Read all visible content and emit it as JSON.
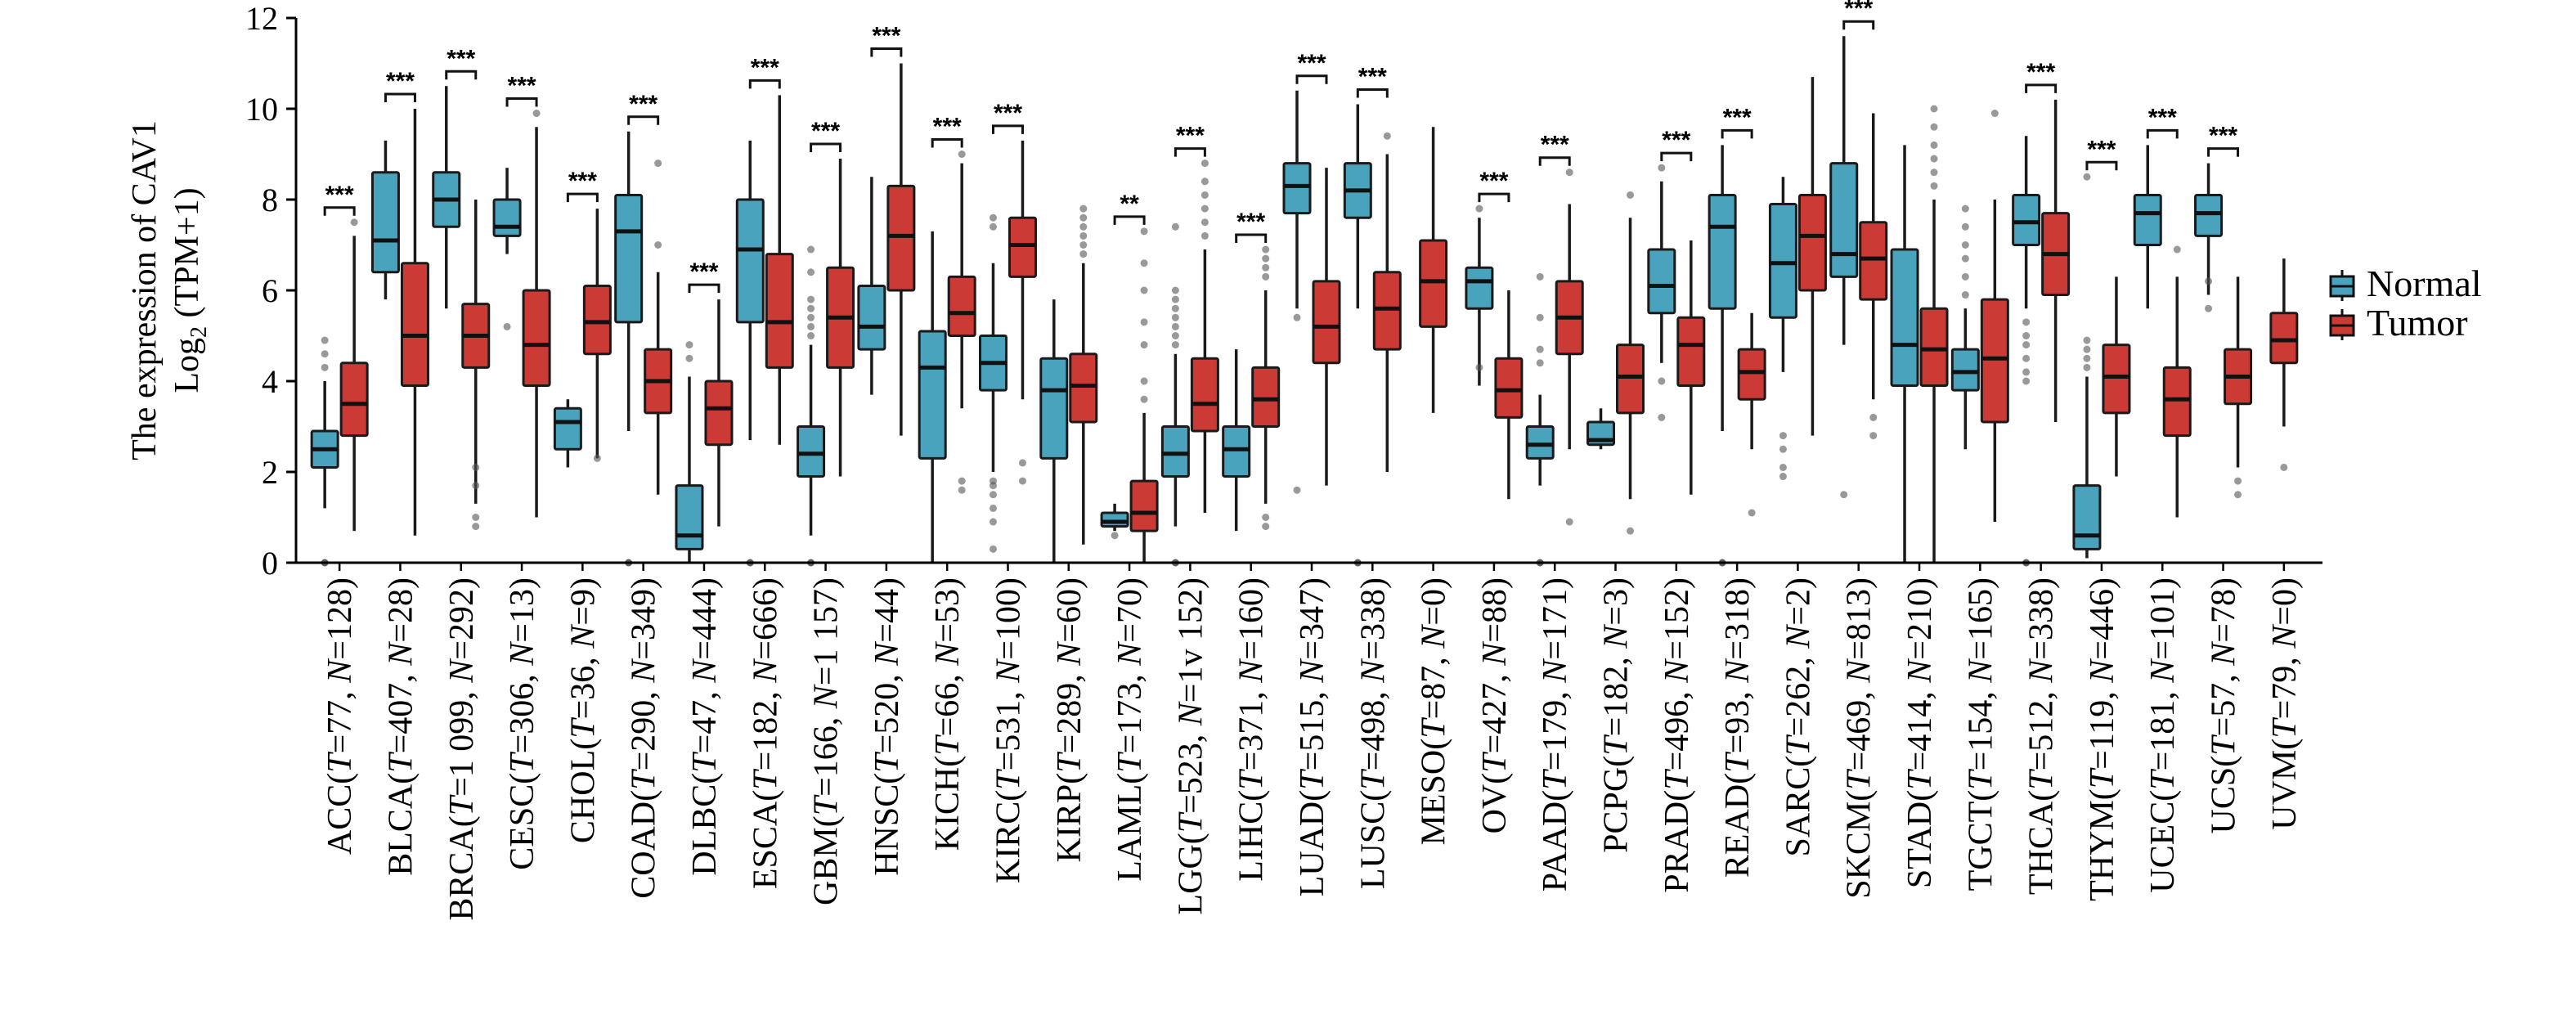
{
  "chart_data": {
    "type": "boxplot",
    "title": "",
    "ylabel_line1": "The expression of CAV1",
    "ylabel_line2": "Log2 (TPM+1)",
    "ylabel_line2_parts": {
      "base": "Log",
      "sub": "2",
      "rest": " (TPM+1)"
    },
    "ylim": [
      0,
      12
    ],
    "yticks": [
      0,
      2,
      4,
      6,
      8,
      10,
      12
    ],
    "legend": [
      {
        "name": "Normal",
        "color": "#4aa3bd"
      },
      {
        "name": "Tumor",
        "color": "#cc3a36"
      }
    ],
    "categories": [
      {
        "label": "ACC(T=77, N=128)",
        "parts": [
          "ACC(",
          "T",
          "=77, ",
          "N",
          "=128)"
        ],
        "sig": "***",
        "normal": {
          "min": 1.2,
          "q1": 2.1,
          "med": 2.5,
          "q3": 2.9,
          "max": 4.0,
          "out": [
            0.0,
            4.3,
            4.6,
            4.9
          ]
        },
        "tumor": {
          "min": 0.7,
          "q1": 2.8,
          "med": 3.5,
          "q3": 4.4,
          "max": 7.2,
          "out": [
            7.5
          ]
        }
      },
      {
        "label": "BLCA(T=407, N=28)",
        "parts": [
          "BLCA(",
          "T",
          "=407, ",
          "N",
          "=28)"
        ],
        "sig": "***",
        "normal": {
          "min": 5.8,
          "q1": 6.4,
          "med": 7.1,
          "q3": 8.6,
          "max": 9.3,
          "out": []
        },
        "tumor": {
          "min": 0.6,
          "q1": 3.9,
          "med": 5.0,
          "q3": 6.6,
          "max": 10.0,
          "out": []
        }
      },
      {
        "label": "BRCA(T=1 099, N=292)",
        "parts": [
          "BRCA(",
          "T",
          "=1 099, ",
          "N",
          "=292)"
        ],
        "sig": "***",
        "normal": {
          "min": 5.6,
          "q1": 7.4,
          "med": 8.0,
          "q3": 8.6,
          "max": 10.5,
          "out": []
        },
        "tumor": {
          "min": 1.3,
          "q1": 4.3,
          "med": 5.0,
          "q3": 5.7,
          "max": 8.0,
          "out": [
            0.8,
            1.0,
            1.7,
            2.1
          ]
        }
      },
      {
        "label": "CESC(T=306, N=13)",
        "parts": [
          "CESC(",
          "T",
          "=306, ",
          "N",
          "=13)"
        ],
        "sig": "***",
        "normal": {
          "min": 6.8,
          "q1": 7.2,
          "med": 7.4,
          "q3": 8.0,
          "max": 8.7,
          "out": [
            5.2
          ]
        },
        "tumor": {
          "min": 1.0,
          "q1": 3.9,
          "med": 4.8,
          "q3": 6.0,
          "max": 9.6,
          "out": [
            9.9
          ]
        }
      },
      {
        "label": "CHOL(T=36, N=9)",
        "parts": [
          "CHOL(",
          "T",
          "=36, ",
          "N",
          "=9)"
        ],
        "sig": "***",
        "normal": {
          "min": 2.1,
          "q1": 2.5,
          "med": 3.1,
          "q3": 3.4,
          "max": 3.6,
          "out": []
        },
        "tumor": {
          "min": 2.3,
          "q1": 4.6,
          "med": 5.3,
          "q3": 6.1,
          "max": 7.8,
          "out": [
            2.3
          ]
        }
      },
      {
        "label": "COAD(T=290, N=349)",
        "parts": [
          "COAD(",
          "T",
          "=290, ",
          "N",
          "=349)"
        ],
        "sig": "***",
        "normal": {
          "min": 2.9,
          "q1": 5.3,
          "med": 7.3,
          "q3": 8.1,
          "max": 9.5,
          "out": [
            0.0
          ]
        },
        "tumor": {
          "min": 1.5,
          "q1": 3.3,
          "med": 4.0,
          "q3": 4.7,
          "max": 6.4,
          "out": [
            7.0,
            8.8
          ]
        }
      },
      {
        "label": "DLBC(T=47, N=444)",
        "parts": [
          "DLBC(",
          "T",
          "=47, ",
          "N",
          "=444)"
        ],
        "sig": "***",
        "normal": {
          "min": 0.0,
          "q1": 0.3,
          "med": 0.6,
          "q3": 1.7,
          "max": 4.1,
          "out": [
            4.5,
            4.8
          ]
        },
        "tumor": {
          "min": 0.8,
          "q1": 2.6,
          "med": 3.4,
          "q3": 4.0,
          "max": 5.8,
          "out": []
        }
      },
      {
        "label": "ESCA(T=182, N=666)",
        "parts": [
          "ESCA(",
          "T",
          "=182, ",
          "N",
          "=666)"
        ],
        "sig": "***",
        "normal": {
          "min": 2.7,
          "q1": 5.3,
          "med": 6.9,
          "q3": 8.0,
          "max": 9.3,
          "out": [
            0.0
          ]
        },
        "tumor": {
          "min": 2.6,
          "q1": 4.3,
          "med": 5.3,
          "q3": 6.8,
          "max": 10.3,
          "out": []
        }
      },
      {
        "label": "GBM(T=166, N=1 157)",
        "parts": [
          "GBM(",
          "T",
          "=166, ",
          "N",
          "=1 157)"
        ],
        "sig": "***",
        "normal": {
          "min": 0.6,
          "q1": 1.9,
          "med": 2.4,
          "q3": 3.0,
          "max": 4.8,
          "out": [
            0.0,
            5.0,
            5.2,
            5.4,
            5.6,
            5.8,
            6.4,
            6.9
          ]
        },
        "tumor": {
          "min": 1.9,
          "q1": 4.3,
          "med": 5.4,
          "q3": 6.5,
          "max": 8.9,
          "out": []
        }
      },
      {
        "label": "HNSC(T=520, N=44)",
        "parts": [
          "HNSC(",
          "T",
          "=520, ",
          "N",
          "=44)"
        ],
        "sig": "***",
        "normal": {
          "min": 3.7,
          "q1": 4.7,
          "med": 5.2,
          "q3": 6.1,
          "max": 8.5,
          "out": []
        },
        "tumor": {
          "min": 2.8,
          "q1": 6.0,
          "med": 7.2,
          "q3": 8.3,
          "max": 11.0,
          "out": []
        }
      },
      {
        "label": "KICH(T=66, N=53)",
        "parts": [
          "KICH(",
          "T",
          "=66, ",
          "N",
          "=53)"
        ],
        "sig": "***",
        "normal": {
          "min": 0.0,
          "q1": 2.3,
          "med": 4.3,
          "q3": 5.1,
          "max": 7.3,
          "out": []
        },
        "tumor": {
          "min": 3.4,
          "q1": 5.0,
          "med": 5.5,
          "q3": 6.3,
          "max": 8.8,
          "out": [
            1.6,
            1.8,
            9.0
          ]
        }
      },
      {
        "label": "KIRC(T=531, N=100)",
        "parts": [
          "KIRC(",
          "T",
          "=531, ",
          "N",
          "=100)"
        ],
        "sig": "***",
        "normal": {
          "min": 2.0,
          "q1": 3.8,
          "med": 4.4,
          "q3": 5.0,
          "max": 6.6,
          "out": [
            0.3,
            0.9,
            1.2,
            1.5,
            1.7,
            1.8,
            7.4,
            7.6
          ]
        },
        "tumor": {
          "min": 3.6,
          "q1": 6.3,
          "med": 7.0,
          "q3": 7.6,
          "max": 9.3,
          "out": [
            1.8,
            2.2
          ]
        }
      },
      {
        "label": "KIRP(T=289, N=60)",
        "parts": [
          "KIRP(",
          "T",
          "=289, ",
          "N",
          "=60)"
        ],
        "sig": "",
        "normal": {
          "min": 0.0,
          "q1": 2.3,
          "med": 3.8,
          "q3": 4.5,
          "max": 5.8,
          "out": []
        },
        "tumor": {
          "min": 0.4,
          "q1": 3.1,
          "med": 3.9,
          "q3": 4.6,
          "max": 6.6,
          "out": [
            6.8,
            7.0,
            7.2,
            7.4,
            7.6,
            7.8
          ]
        }
      },
      {
        "label": "LAML(T=173, N=70)",
        "parts": [
          "LAML(",
          "T",
          "=173, ",
          "N",
          "=70)"
        ],
        "sig": "**",
        "normal": {
          "min": 0.7,
          "q1": 0.8,
          "med": 0.9,
          "q3": 1.1,
          "max": 1.3,
          "out": [
            0.6
          ]
        },
        "tumor": {
          "min": 0.0,
          "q1": 0.7,
          "med": 1.1,
          "q3": 1.8,
          "max": 3.3,
          "out": [
            3.6,
            4.0,
            4.8,
            5.3,
            6.0,
            6.6,
            7.3
          ]
        }
      },
      {
        "label": "LGG(T=523, N=1v 152)",
        "parts": [
          "LGG(",
          "T",
          "=523, ",
          "N",
          "=1v 152)"
        ],
        "sig": "***",
        "normal": {
          "min": 0.8,
          "q1": 1.9,
          "med": 2.4,
          "q3": 3.0,
          "max": 4.6,
          "out": [
            0.0,
            4.8,
            5.0,
            5.2,
            5.4,
            5.6,
            5.8,
            6.0,
            7.4
          ]
        },
        "tumor": {
          "min": 1.1,
          "q1": 2.9,
          "med": 3.5,
          "q3": 4.5,
          "max": 6.9,
          "out": [
            7.2,
            7.5,
            7.8,
            8.1,
            8.4,
            8.8
          ]
        }
      },
      {
        "label": "LIHC(T=371, N=160)",
        "parts": [
          "LIHC(",
          "T",
          "=371, ",
          "N",
          "=160)"
        ],
        "sig": "***",
        "normal": {
          "min": 0.7,
          "q1": 1.9,
          "med": 2.5,
          "q3": 3.0,
          "max": 4.7,
          "out": []
        },
        "tumor": {
          "min": 1.3,
          "q1": 3.0,
          "med": 3.6,
          "q3": 4.3,
          "max": 6.0,
          "out": [
            0.8,
            1.0,
            6.3,
            6.5,
            6.7,
            6.9
          ]
        }
      },
      {
        "label": "LUAD(T=515, N=347)",
        "parts": [
          "LUAD(",
          "T",
          "=515, ",
          "N",
          "=347)"
        ],
        "sig": "***",
        "normal": {
          "min": 5.6,
          "q1": 7.7,
          "med": 8.3,
          "q3": 8.8,
          "max": 10.4,
          "out": [
            1.6,
            5.4
          ]
        },
        "tumor": {
          "min": 1.7,
          "q1": 4.4,
          "med": 5.2,
          "q3": 6.2,
          "max": 8.7,
          "out": []
        }
      },
      {
        "label": "LUSC(T=498, N=338)",
        "parts": [
          "LUSC(",
          "T",
          "=498, ",
          "N",
          "=338)"
        ],
        "sig": "***",
        "normal": {
          "min": 5.6,
          "q1": 7.6,
          "med": 8.2,
          "q3": 8.8,
          "max": 10.1,
          "out": [
            0.0
          ]
        },
        "tumor": {
          "min": 2.0,
          "q1": 4.7,
          "med": 5.6,
          "q3": 6.4,
          "max": 9.0,
          "out": [
            9.4
          ]
        }
      },
      {
        "label": "MESO(T=87, N=0)",
        "parts": [
          "MESO(",
          "T",
          "=87, ",
          "N",
          "=0)"
        ],
        "sig": "",
        "normal": null,
        "tumor": {
          "min": 3.3,
          "q1": 5.2,
          "med": 6.2,
          "q3": 7.1,
          "max": 9.6,
          "out": []
        }
      },
      {
        "label": "OV(T=427, N=88)",
        "parts": [
          "OV(",
          "T",
          "=427, ",
          "N",
          "=88)"
        ],
        "sig": "***",
        "normal": {
          "min": 3.9,
          "q1": 5.6,
          "med": 6.2,
          "q3": 6.5,
          "max": 7.6,
          "out": [
            4.3,
            7.8
          ]
        },
        "tumor": {
          "min": 1.4,
          "q1": 3.2,
          "med": 3.8,
          "q3": 4.5,
          "max": 6.0,
          "out": []
        }
      },
      {
        "label": "PAAD(T=179, N=171)",
        "parts": [
          "PAAD(",
          "T",
          "=179, ",
          "N",
          "=171)"
        ],
        "sig": "***",
        "normal": {
          "min": 1.7,
          "q1": 2.3,
          "med": 2.6,
          "q3": 3.0,
          "max": 3.7,
          "out": [
            0.0,
            4.4,
            4.7,
            5.4,
            6.3
          ]
        },
        "tumor": {
          "min": 2.5,
          "q1": 4.6,
          "med": 5.4,
          "q3": 6.2,
          "max": 7.9,
          "out": [
            0.9,
            8.6
          ]
        }
      },
      {
        "label": "PCPG(T=182, N=3)",
        "parts": [
          "PCPG(",
          "T",
          "=182, ",
          "N",
          "=3)"
        ],
        "sig": "",
        "normal": {
          "min": 2.5,
          "q1": 2.6,
          "med": 2.7,
          "q3": 3.1,
          "max": 3.4,
          "out": []
        },
        "tumor": {
          "min": 1.4,
          "q1": 3.3,
          "med": 4.1,
          "q3": 4.8,
          "max": 7.6,
          "out": [
            0.7,
            8.1
          ]
        }
      },
      {
        "label": "PRAD(T=496, N=152)",
        "parts": [
          "PRAD(",
          "T",
          "=496, ",
          "N",
          "=152)"
        ],
        "sig": "***",
        "normal": {
          "min": 4.4,
          "q1": 5.5,
          "med": 6.1,
          "q3": 6.9,
          "max": 8.4,
          "out": [
            3.2,
            4.0,
            8.7
          ]
        },
        "tumor": {
          "min": 1.5,
          "q1": 3.9,
          "med": 4.8,
          "q3": 5.4,
          "max": 7.1,
          "out": []
        }
      },
      {
        "label": "READ(T=93, N=318)",
        "parts": [
          "READ(",
          "T",
          "=93, ",
          "N",
          "=318)"
        ],
        "sig": "***",
        "normal": {
          "min": 2.9,
          "q1": 5.6,
          "med": 7.4,
          "q3": 8.1,
          "max": 9.2,
          "out": [
            0.0
          ]
        },
        "tumor": {
          "min": 2.5,
          "q1": 3.6,
          "med": 4.2,
          "q3": 4.7,
          "max": 5.5,
          "out": [
            1.1
          ]
        }
      },
      {
        "label": "SARC(T=262, N=2)",
        "parts": [
          "SARC(",
          "T",
          "=262, ",
          "N",
          "=2)"
        ],
        "sig": "",
        "normal": {
          "min": 4.2,
          "q1": 5.4,
          "med": 6.6,
          "q3": 7.9,
          "max": 8.5,
          "out": [
            1.9,
            2.1,
            2.5,
            2.8
          ]
        },
        "tumor": {
          "min": 2.8,
          "q1": 6.0,
          "med": 7.2,
          "q3": 8.1,
          "max": 10.7,
          "out": []
        }
      },
      {
        "label": "SKCM(T=469, N=813)",
        "parts": [
          "SKCM(",
          "T",
          "=469, ",
          "N",
          "=813)"
        ],
        "sig": "***",
        "normal": {
          "min": 4.8,
          "q1": 6.3,
          "med": 6.8,
          "q3": 8.8,
          "max": 11.6,
          "out": [
            1.5
          ]
        },
        "tumor": {
          "min": 3.6,
          "q1": 5.8,
          "med": 6.7,
          "q3": 7.5,
          "max": 9.9,
          "out": [
            2.8,
            3.2
          ]
        }
      },
      {
        "label": "STAD(T=414, N=210)",
        "parts": [
          "STAD(",
          "T",
          "=414, ",
          "N",
          "=210)"
        ],
        "sig": "",
        "normal": {
          "min": 0.0,
          "q1": 3.9,
          "med": 4.8,
          "q3": 6.9,
          "max": 9.2,
          "out": []
        },
        "tumor": {
          "min": 0.0,
          "q1": 3.9,
          "med": 4.7,
          "q3": 5.6,
          "max": 8.0,
          "out": [
            8.3,
            8.6,
            8.9,
            9.2,
            9.6,
            10.0
          ]
        }
      },
      {
        "label": "TGCT(T=154, N=165)",
        "parts": [
          "TGCT(",
          "T",
          "=154, ",
          "N",
          "=165)"
        ],
        "sig": "",
        "normal": {
          "min": 2.5,
          "q1": 3.8,
          "med": 4.2,
          "q3": 4.7,
          "max": 5.6,
          "out": [
            5.9,
            6.3,
            6.7,
            7.0,
            7.4,
            7.8
          ]
        },
        "tumor": {
          "min": 0.9,
          "q1": 3.1,
          "med": 4.5,
          "q3": 5.8,
          "max": 8.0,
          "out": [
            9.9
          ]
        }
      },
      {
        "label": "THCA(T=512, N=338)",
        "parts": [
          "THCA(",
          "T",
          "=512, ",
          "N",
          "=338)"
        ],
        "sig": "***",
        "normal": {
          "min": 5.6,
          "q1": 7.0,
          "med": 7.5,
          "q3": 8.1,
          "max": 9.4,
          "out": [
            0.0,
            4.0,
            4.2,
            4.5,
            4.8,
            5.0,
            5.3
          ]
        },
        "tumor": {
          "min": 3.1,
          "q1": 5.9,
          "med": 6.8,
          "q3": 7.7,
          "max": 10.2,
          "out": []
        }
      },
      {
        "label": "THYM(T=119, N=446)",
        "parts": [
          "THYM(",
          "T",
          "=119, ",
          "N",
          "=446)"
        ],
        "sig": "***",
        "normal": {
          "min": 0.1,
          "q1": 0.3,
          "med": 0.6,
          "q3": 1.7,
          "max": 4.1,
          "out": [
            4.3,
            4.5,
            4.7,
            4.9,
            8.5
          ]
        },
        "tumor": {
          "min": 1.9,
          "q1": 3.3,
          "med": 4.1,
          "q3": 4.8,
          "max": 6.3,
          "out": []
        }
      },
      {
        "label": "UCEC(T=181, N=101)",
        "parts": [
          "UCEC(",
          "T",
          "=181, ",
          "N",
          "=101)"
        ],
        "sig": "***",
        "normal": {
          "min": 5.6,
          "q1": 7.0,
          "med": 7.7,
          "q3": 8.1,
          "max": 9.2,
          "out": []
        },
        "tumor": {
          "min": 1.0,
          "q1": 2.8,
          "med": 3.6,
          "q3": 4.3,
          "max": 6.3,
          "out": [
            6.9
          ]
        }
      },
      {
        "label": "UCS(T=57, N=78)",
        "parts": [
          "UCS(",
          "T",
          "=57, ",
          "N",
          "=78)"
        ],
        "sig": "***",
        "normal": {
          "min": 5.9,
          "q1": 7.2,
          "med": 7.7,
          "q3": 8.1,
          "max": 8.8,
          "out": [
            5.6,
            6.2
          ]
        },
        "tumor": {
          "min": 2.1,
          "q1": 3.5,
          "med": 4.1,
          "q3": 4.7,
          "max": 6.3,
          "out": [
            1.5,
            1.8
          ]
        }
      },
      {
        "label": "UVM(T=79, N=0)",
        "parts": [
          "UVM(",
          "T",
          "=79, ",
          "N",
          "=0)"
        ],
        "sig": "",
        "normal": null,
        "tumor": {
          "min": 3.0,
          "q1": 4.4,
          "med": 4.9,
          "q3": 5.5,
          "max": 6.7,
          "out": [
            2.1
          ]
        }
      }
    ]
  }
}
